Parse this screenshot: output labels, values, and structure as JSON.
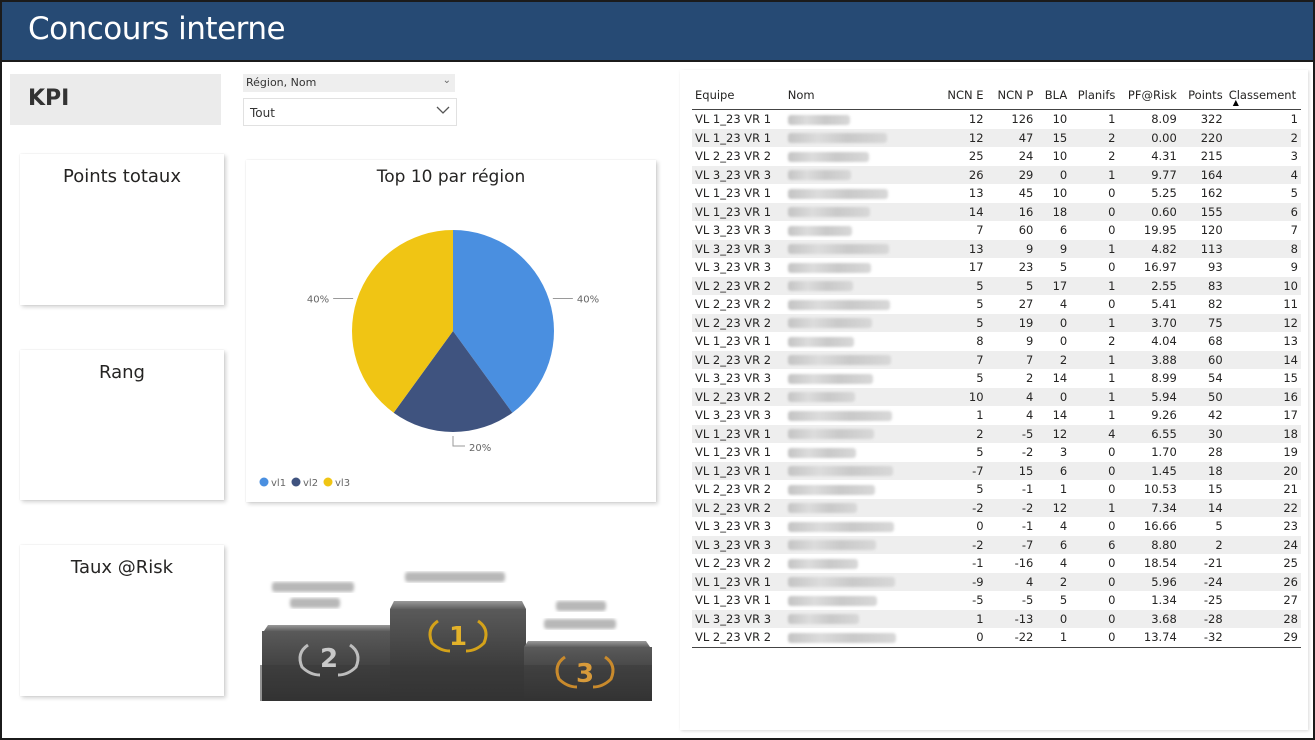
{
  "header": {
    "title": "Concours interne"
  },
  "kpi": {
    "label": "KPI",
    "cards": [
      "Points totaux",
      "Rang",
      "Taux @Risk"
    ]
  },
  "slicer": {
    "header": "Région, Nom",
    "value": "Tout"
  },
  "chart_data": {
    "type": "pie",
    "title": "Top 10 par région",
    "categories": [
      "vl1",
      "vl2",
      "vl3"
    ],
    "values": [
      40,
      20,
      40
    ],
    "labels": [
      "40%",
      "20%",
      "40%"
    ],
    "colors": [
      "#4a8fe0",
      "#3f537f",
      "#f0c514"
    ],
    "legend": "bottom-left"
  },
  "podium": {
    "ranks": [
      "1",
      "2",
      "3"
    ],
    "names": [
      "",
      "",
      ""
    ]
  },
  "table": {
    "columns": [
      "Equipe",
      "Nom",
      "NCN E",
      "NCN P",
      "BLA",
      "Planifs",
      "PF@Risk",
      "Points",
      "Classement"
    ],
    "sort_column": "Classement",
    "rows": [
      [
        "VL 1_23 VR 1",
        "",
        "12",
        "126",
        "10",
        "1",
        "8.09",
        "322",
        "1"
      ],
      [
        "VL 1_23 VR 1",
        "",
        "12",
        "47",
        "15",
        "2",
        "0.00",
        "220",
        "2"
      ],
      [
        "VL 2_23 VR 2",
        "",
        "25",
        "24",
        "10",
        "2",
        "4.31",
        "215",
        "3"
      ],
      [
        "VL 3_23 VR 3",
        "",
        "26",
        "29",
        "0",
        "1",
        "9.77",
        "164",
        "4"
      ],
      [
        "VL 1_23 VR 1",
        "",
        "13",
        "45",
        "10",
        "0",
        "5.25",
        "162",
        "5"
      ],
      [
        "VL 1_23 VR 1",
        "",
        "14",
        "16",
        "18",
        "0",
        "0.60",
        "155",
        "6"
      ],
      [
        "VL 3_23 VR 3",
        "",
        "7",
        "60",
        "6",
        "0",
        "19.95",
        "120",
        "7"
      ],
      [
        "VL 3_23 VR 3",
        "",
        "13",
        "9",
        "9",
        "1",
        "4.82",
        "113",
        "8"
      ],
      [
        "VL 3_23 VR 3",
        "",
        "17",
        "23",
        "5",
        "0",
        "16.97",
        "93",
        "9"
      ],
      [
        "VL 2_23 VR 2",
        "",
        "5",
        "5",
        "17",
        "1",
        "2.55",
        "83",
        "10"
      ],
      [
        "VL 2_23 VR 2",
        "",
        "5",
        "27",
        "4",
        "0",
        "5.41",
        "82",
        "11"
      ],
      [
        "VL 2_23 VR 2",
        "",
        "5",
        "19",
        "0",
        "1",
        "3.70",
        "75",
        "12"
      ],
      [
        "VL 1_23 VR 1",
        "",
        "8",
        "9",
        "0",
        "2",
        "4.04",
        "68",
        "13"
      ],
      [
        "VL 2_23 VR 2",
        "",
        "7",
        "7",
        "2",
        "1",
        "3.88",
        "60",
        "14"
      ],
      [
        "VL 3_23 VR 3",
        "",
        "5",
        "2",
        "14",
        "1",
        "8.99",
        "54",
        "15"
      ],
      [
        "VL 2_23 VR 2",
        "",
        "10",
        "4",
        "0",
        "1",
        "5.94",
        "50",
        "16"
      ],
      [
        "VL 3_23 VR 3",
        "",
        "1",
        "4",
        "14",
        "1",
        "9.26",
        "42",
        "17"
      ],
      [
        "VL 1_23 VR 1",
        "",
        "2",
        "-5",
        "12",
        "4",
        "6.55",
        "30",
        "18"
      ],
      [
        "VL 1_23 VR 1",
        "",
        "5",
        "-2",
        "3",
        "0",
        "1.70",
        "28",
        "19"
      ],
      [
        "VL 1_23 VR 1",
        "",
        "-7",
        "15",
        "6",
        "0",
        "1.45",
        "18",
        "20"
      ],
      [
        "VL 2_23 VR 2",
        "",
        "5",
        "-1",
        "1",
        "0",
        "10.53",
        "15",
        "21"
      ],
      [
        "VL 2_23 VR 2",
        "",
        "-2",
        "-2",
        "12",
        "1",
        "7.34",
        "14",
        "22"
      ],
      [
        "VL 3_23 VR 3",
        "",
        "0",
        "-1",
        "4",
        "0",
        "16.66",
        "5",
        "23"
      ],
      [
        "VL 3_23 VR 3",
        "",
        "-2",
        "-7",
        "6",
        "6",
        "8.80",
        "2",
        "24"
      ],
      [
        "VL 2_23 VR 2",
        "",
        "-1",
        "-16",
        "4",
        "0",
        "18.54",
        "-21",
        "25"
      ],
      [
        "VL 1_23 VR 1",
        "",
        "-9",
        "4",
        "2",
        "0",
        "5.96",
        "-24",
        "26"
      ],
      [
        "VL 1_23 VR 1",
        "",
        "-5",
        "-5",
        "5",
        "0",
        "1.34",
        "-25",
        "27"
      ],
      [
        "VL 3_23 VR 3",
        "",
        "1",
        "-13",
        "0",
        "0",
        "3.68",
        "-28",
        "28"
      ],
      [
        "VL 2_23 VR 2",
        "",
        "0",
        "-22",
        "1",
        "0",
        "13.74",
        "-32",
        "29"
      ]
    ]
  }
}
